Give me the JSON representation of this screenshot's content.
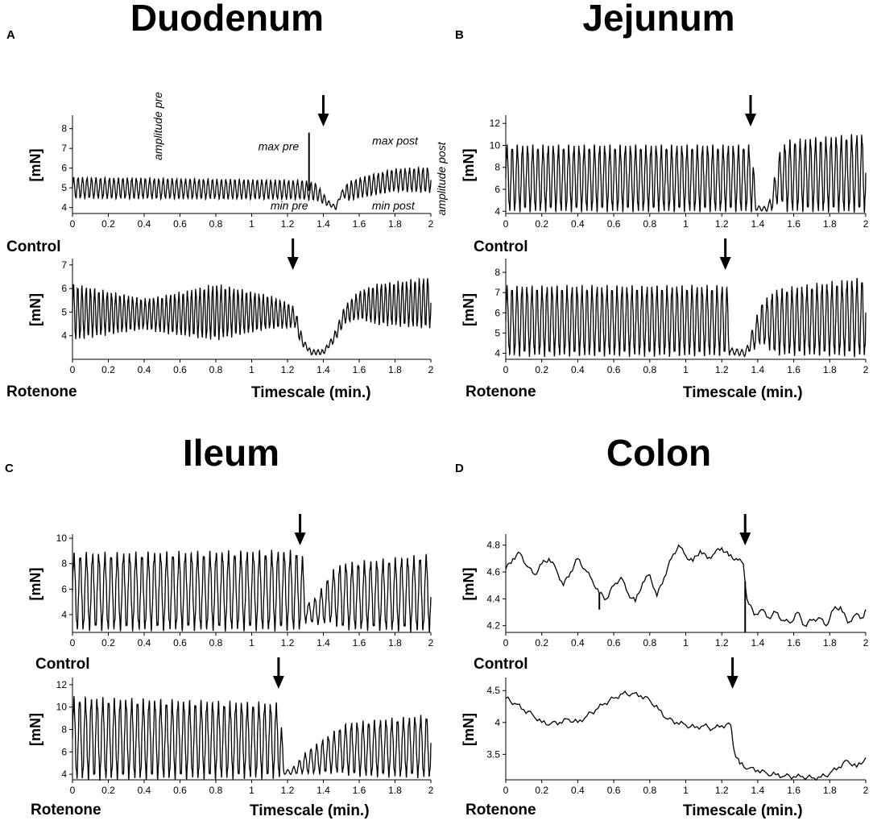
{
  "chart_data": [
    {
      "panel": "A",
      "title": "Duodenum",
      "charts": [
        {
          "type": "line",
          "condition": "Control",
          "ylabel": "[mN]",
          "xlabel": "",
          "xlim": [
            0,
            2
          ],
          "ylim": [
            3.7,
            8.6
          ],
          "xticks": [
            "0",
            "0.2",
            "0.4",
            "0.6",
            "0.8",
            "1",
            "1.2",
            "1.4",
            "1.6",
            "1.8",
            "2"
          ],
          "yticks": [
            4,
            5,
            6,
            7,
            8
          ],
          "arrow_x": 1.4,
          "annotations": [
            "amplitude pre",
            "max pre",
            "min pre",
            "max post",
            "min post",
            "amplitude post"
          ],
          "trace": {
            "baseline": [
              [
                0,
                5.0
              ],
              [
                1.28,
                4.9
              ],
              [
                1.36,
                4.8
              ],
              [
                1.43,
                4.2
              ],
              [
                1.47,
                4.0
              ],
              [
                1.5,
                4.7
              ],
              [
                1.6,
                5.0
              ],
              [
                1.8,
                5.4
              ],
              [
                2,
                5.4
              ]
            ],
            "amplitude": [
              [
                0,
                0.5
              ],
              [
                1.3,
                0.45
              ],
              [
                1.36,
                0.4
              ],
              [
                1.44,
                0.1
              ],
              [
                1.5,
                0.1
              ],
              [
                1.54,
                0.45
              ],
              [
                2,
                0.6
              ]
            ],
            "cycles": 80,
            "spike": [
              1.32,
              7.8
            ]
          }
        },
        {
          "type": "line",
          "condition": "Rotenone",
          "ylabel": "[mN]",
          "xlabel": "Timescale (min.)",
          "xlim": [
            0,
            2
          ],
          "ylim": [
            3.0,
            7.2
          ],
          "xticks": [
            "0",
            "0.2",
            "0.4",
            "0.6",
            "0.8",
            "1",
            "1.2",
            "1.4",
            "1.6",
            "1.8",
            "2"
          ],
          "yticks": [
            4,
            5,
            6,
            7
          ],
          "arrow_x": 1.23,
          "trace": {
            "baseline": [
              [
                0,
                5.0
              ],
              [
                0.5,
                4.9
              ],
              [
                0.8,
                5.0
              ],
              [
                1.1,
                5.0
              ],
              [
                1.24,
                4.8
              ],
              [
                1.28,
                3.8
              ],
              [
                1.33,
                3.3
              ],
              [
                1.4,
                3.3
              ],
              [
                1.46,
                3.9
              ],
              [
                1.52,
                4.9
              ],
              [
                1.6,
                5.3
              ],
              [
                2,
                5.4
              ]
            ],
            "amplitude": [
              [
                0,
                1.1
              ],
              [
                0.4,
                0.6
              ],
              [
                0.8,
                1.1
              ],
              [
                1.2,
                0.5
              ],
              [
                1.27,
                0.3
              ],
              [
                1.3,
                0.1
              ],
              [
                1.43,
                0.1
              ],
              [
                1.5,
                0.3
              ],
              [
                1.7,
                0.8
              ],
              [
                2,
                1.0
              ]
            ],
            "cycles": 85
          }
        }
      ]
    },
    {
      "panel": "B",
      "title": "Jejunum",
      "charts": [
        {
          "type": "line",
          "condition": "Control",
          "ylabel": "[mN]",
          "xlabel": "",
          "xlim": [
            0,
            2
          ],
          "ylim": [
            3.8,
            12.6
          ],
          "xticks": [
            "0",
            "0.2",
            "0.4",
            "0.6",
            "0.8",
            "1",
            "1.2",
            "1.4",
            "1.6",
            "1.8",
            "2"
          ],
          "yticks": [
            4,
            6,
            8,
            10,
            12
          ],
          "arrow_x": 1.36,
          "trace": {
            "baseline": [
              [
                0,
                7.0
              ],
              [
                1.37,
                7.0
              ],
              [
                1.39,
                4.3
              ],
              [
                1.45,
                4.2
              ],
              [
                1.48,
                5.0
              ],
              [
                1.52,
                7.2
              ],
              [
                2,
                7.5
              ]
            ],
            "amplitude": [
              [
                0,
                2.8
              ],
              [
                1.37,
                2.8
              ],
              [
                1.39,
                0.2
              ],
              [
                1.46,
                0.2
              ],
              [
                1.5,
                1.5
              ],
              [
                1.56,
                3.0
              ],
              [
                2,
                3.3
              ]
            ],
            "cycles": 70
          }
        },
        {
          "type": "line",
          "condition": "Rotenone",
          "ylabel": "[mN]",
          "xlabel": "Timescale (min.)",
          "xlim": [
            0,
            2
          ],
          "ylim": [
            3.7,
            8.6
          ],
          "xticks": [
            "0",
            "0.2",
            "0.4",
            "0.6",
            "0.8",
            "1",
            "1.2",
            "1.4",
            "1.6",
            "1.8",
            "2"
          ],
          "yticks": [
            4,
            5,
            6,
            7,
            8
          ],
          "arrow_x": 1.22,
          "trace": {
            "baseline": [
              [
                0,
                5.6
              ],
              [
                1.23,
                5.6
              ],
              [
                1.25,
                4.1
              ],
              [
                1.33,
                4.0
              ],
              [
                1.36,
                4.5
              ],
              [
                1.42,
                5.5
              ],
              [
                2,
                5.8
              ]
            ],
            "amplitude": [
              [
                0,
                1.6
              ],
              [
                1.23,
                1.6
              ],
              [
                1.25,
                0.15
              ],
              [
                1.34,
                0.15
              ],
              [
                1.38,
                0.6
              ],
              [
                1.5,
                1.5
              ],
              [
                2,
                1.8
              ]
            ],
            "cycles": 72
          }
        }
      ]
    },
    {
      "panel": "C",
      "title": "Ileum",
      "charts": [
        {
          "type": "line",
          "condition": "Control",
          "ylabel": "[mN]",
          "xlabel": "",
          "xlim": [
            0,
            2
          ],
          "ylim": [
            2.6,
            10.2
          ],
          "xticks": [
            "0",
            "0.2",
            "0.4",
            "0.6",
            "0.8",
            "1",
            "1.2",
            "1.4",
            "1.6",
            "1.8",
            "2"
          ],
          "yticks": [
            4,
            6,
            8,
            10
          ],
          "arrow_x": 1.27,
          "trace": {
            "baseline": [
              [
                0,
                5.8
              ],
              [
                1.28,
                5.9
              ],
              [
                1.31,
                4.2
              ],
              [
                1.36,
                4.3
              ],
              [
                1.45,
                5.4
              ],
              [
                2,
                5.7
              ]
            ],
            "amplitude": [
              [
                0,
                2.8
              ],
              [
                1.28,
                2.9
              ],
              [
                1.31,
                0.6
              ],
              [
                1.38,
                1.2
              ],
              [
                1.5,
                2.4
              ],
              [
                2,
                2.8
              ]
            ],
            "cycles": 58
          }
        },
        {
          "type": "line",
          "condition": "Rotenone",
          "ylabel": "[mN]",
          "xlabel": "Timescale (min.)",
          "xlim": [
            0,
            2
          ],
          "ylim": [
            3.5,
            12.5
          ],
          "xticks": [
            "0",
            "0.2",
            "0.4",
            "0.6",
            "0.8",
            "1",
            "1.2",
            "1.4",
            "1.6",
            "1.8",
            "2"
          ],
          "yticks": [
            4,
            6,
            8,
            10,
            12
          ],
          "arrow_x": 1.15,
          "trace": {
            "baseline": [
              [
                0,
                7.2
              ],
              [
                1.16,
                7.0
              ],
              [
                1.18,
                4.2
              ],
              [
                1.22,
                4.2
              ],
              [
                1.3,
                5.0
              ],
              [
                1.5,
                6.2
              ],
              [
                2,
                6.5
              ]
            ],
            "amplitude": [
              [
                0,
                3.4
              ],
              [
                1.16,
                3.1
              ],
              [
                1.18,
                0.2
              ],
              [
                1.22,
                0.2
              ],
              [
                1.32,
                1.0
              ],
              [
                1.55,
                2.2
              ],
              [
                2,
                2.6
              ]
            ],
            "cycles": 62
          }
        }
      ]
    },
    {
      "panel": "D",
      "title": "Colon",
      "charts": [
        {
          "type": "line",
          "condition": "Control",
          "ylabel": "[mN]",
          "xlabel": "",
          "xlim": [
            0,
            2
          ],
          "ylim": [
            4.15,
            4.87
          ],
          "xticks": [
            "0",
            "0.2",
            "0.4",
            "0.6",
            "0.8",
            "1",
            "1.2",
            "1.4",
            "1.6",
            "1.8",
            "2"
          ],
          "yticks": [
            4.2,
            4.4,
            4.6,
            4.8
          ],
          "ytick_labels": [
            "4.2",
            "4.4",
            "4.6",
            "4.8"
          ],
          "arrow_x": 1.33,
          "x": [
            0,
            0.04,
            0.08,
            0.12,
            0.16,
            0.2,
            0.24,
            0.28,
            0.32,
            0.36,
            0.4,
            0.44,
            0.48,
            0.52,
            0.56,
            0.6,
            0.64,
            0.68,
            0.72,
            0.76,
            0.8,
            0.84,
            0.88,
            0.92,
            0.96,
            1.0,
            1.04,
            1.08,
            1.12,
            1.16,
            1.2,
            1.24,
            1.28,
            1.32,
            1.34,
            1.38,
            1.42,
            1.46,
            1.5,
            1.54,
            1.58,
            1.62,
            1.66,
            1.7,
            1.74,
            1.78,
            1.82,
            1.86,
            1.9,
            1.94,
            1.98,
            2.0
          ],
          "y": [
            4.62,
            4.7,
            4.74,
            4.64,
            4.58,
            4.66,
            4.7,
            4.62,
            4.5,
            4.6,
            4.7,
            4.62,
            4.54,
            4.44,
            4.4,
            4.5,
            4.56,
            4.44,
            4.38,
            4.52,
            4.58,
            4.42,
            4.56,
            4.7,
            4.8,
            4.72,
            4.68,
            4.76,
            4.7,
            4.74,
            4.78,
            4.72,
            4.7,
            4.66,
            4.4,
            4.28,
            4.32,
            4.26,
            4.3,
            4.24,
            4.22,
            4.3,
            4.2,
            4.24,
            4.26,
            4.2,
            4.32,
            4.34,
            4.22,
            4.28,
            4.26,
            4.32
          ],
          "spikes": [
            [
              0.52,
              4.32
            ],
            [
              1.33,
              4.15
            ]
          ]
        },
        {
          "type": "line",
          "condition": "Rotenone",
          "ylabel": "[mN]",
          "xlabel": "Timescale (min.)",
          "xlim": [
            0,
            2
          ],
          "ylim": [
            3.1,
            4.68
          ],
          "xticks": [
            "0",
            "0.2",
            "0.4",
            "0.6",
            "0.8",
            "1",
            "1.2",
            "1.4",
            "1.6",
            "1.8",
            "2"
          ],
          "yticks": [
            3.5,
            4,
            4.5
          ],
          "ytick_labels": [
            "3.5",
            "4",
            "4.5"
          ],
          "arrow_x": 1.26,
          "x": [
            0,
            0.05,
            0.1,
            0.15,
            0.2,
            0.25,
            0.3,
            0.35,
            0.4,
            0.45,
            0.5,
            0.55,
            0.6,
            0.65,
            0.7,
            0.75,
            0.8,
            0.85,
            0.9,
            0.95,
            1.0,
            1.05,
            1.1,
            1.15,
            1.2,
            1.25,
            1.27,
            1.3,
            1.35,
            1.4,
            1.45,
            1.5,
            1.55,
            1.6,
            1.65,
            1.7,
            1.75,
            1.8,
            1.85,
            1.9,
            1.95,
            2.0
          ],
          "y": [
            4.38,
            4.3,
            4.2,
            4.12,
            4.0,
            3.98,
            4.0,
            4.05,
            4.0,
            4.1,
            4.2,
            4.3,
            4.38,
            4.45,
            4.45,
            4.42,
            4.35,
            4.2,
            4.05,
            4.0,
            3.96,
            3.92,
            3.95,
            3.9,
            3.95,
            3.96,
            3.55,
            3.35,
            3.28,
            3.25,
            3.2,
            3.18,
            3.16,
            3.15,
            3.15,
            3.13,
            3.14,
            3.2,
            3.3,
            3.4,
            3.3,
            3.45
          ]
        }
      ]
    }
  ]
}
